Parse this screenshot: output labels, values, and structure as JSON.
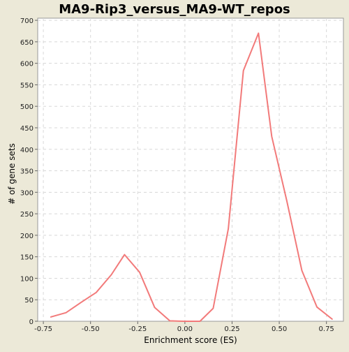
{
  "chart_data": {
    "type": "line",
    "title": "MA9-Rip3_versus_MA9-WT_repos",
    "xlabel": "Enrichment score (ES)",
    "ylabel": "# of gene sets",
    "xlim": [
      -0.78,
      0.84
    ],
    "ylim": [
      0,
      705
    ],
    "xticks": [
      -0.75,
      -0.5,
      -0.25,
      0.0,
      0.25,
      0.5,
      0.75
    ],
    "xtick_labels": [
      "-0.75",
      "-0.50",
      "-0.25",
      "0.00",
      "0.25",
      "0.50",
      "0.75"
    ],
    "yticks": [
      0,
      50,
      100,
      150,
      200,
      250,
      300,
      350,
      400,
      450,
      500,
      550,
      600,
      650,
      700
    ],
    "ytick_labels": [
      "0",
      "50",
      "100",
      "150",
      "200",
      "250",
      "300",
      "350",
      "400",
      "450",
      "500",
      "550",
      "600",
      "650",
      "700"
    ],
    "grid": true,
    "colors": {
      "line": "#f27a7a",
      "plot_background": "#ffffff",
      "page_background": "#ece9d8",
      "grid": "#d8d8d8",
      "axis": "#999999"
    },
    "series": [
      {
        "x": [
          -0.71,
          -0.63,
          -0.55,
          -0.47,
          -0.39,
          -0.32,
          -0.24,
          -0.16,
          -0.08,
          0.0,
          0.08,
          0.15,
          0.23,
          0.31,
          0.39,
          0.46,
          0.54,
          0.62,
          0.7,
          0.78
        ],
        "values": [
          10,
          20,
          44,
          67,
          108,
          155,
          114,
          32,
          1,
          0,
          0,
          30,
          215,
          583,
          670,
          430,
          280,
          118,
          33,
          5
        ]
      }
    ]
  }
}
